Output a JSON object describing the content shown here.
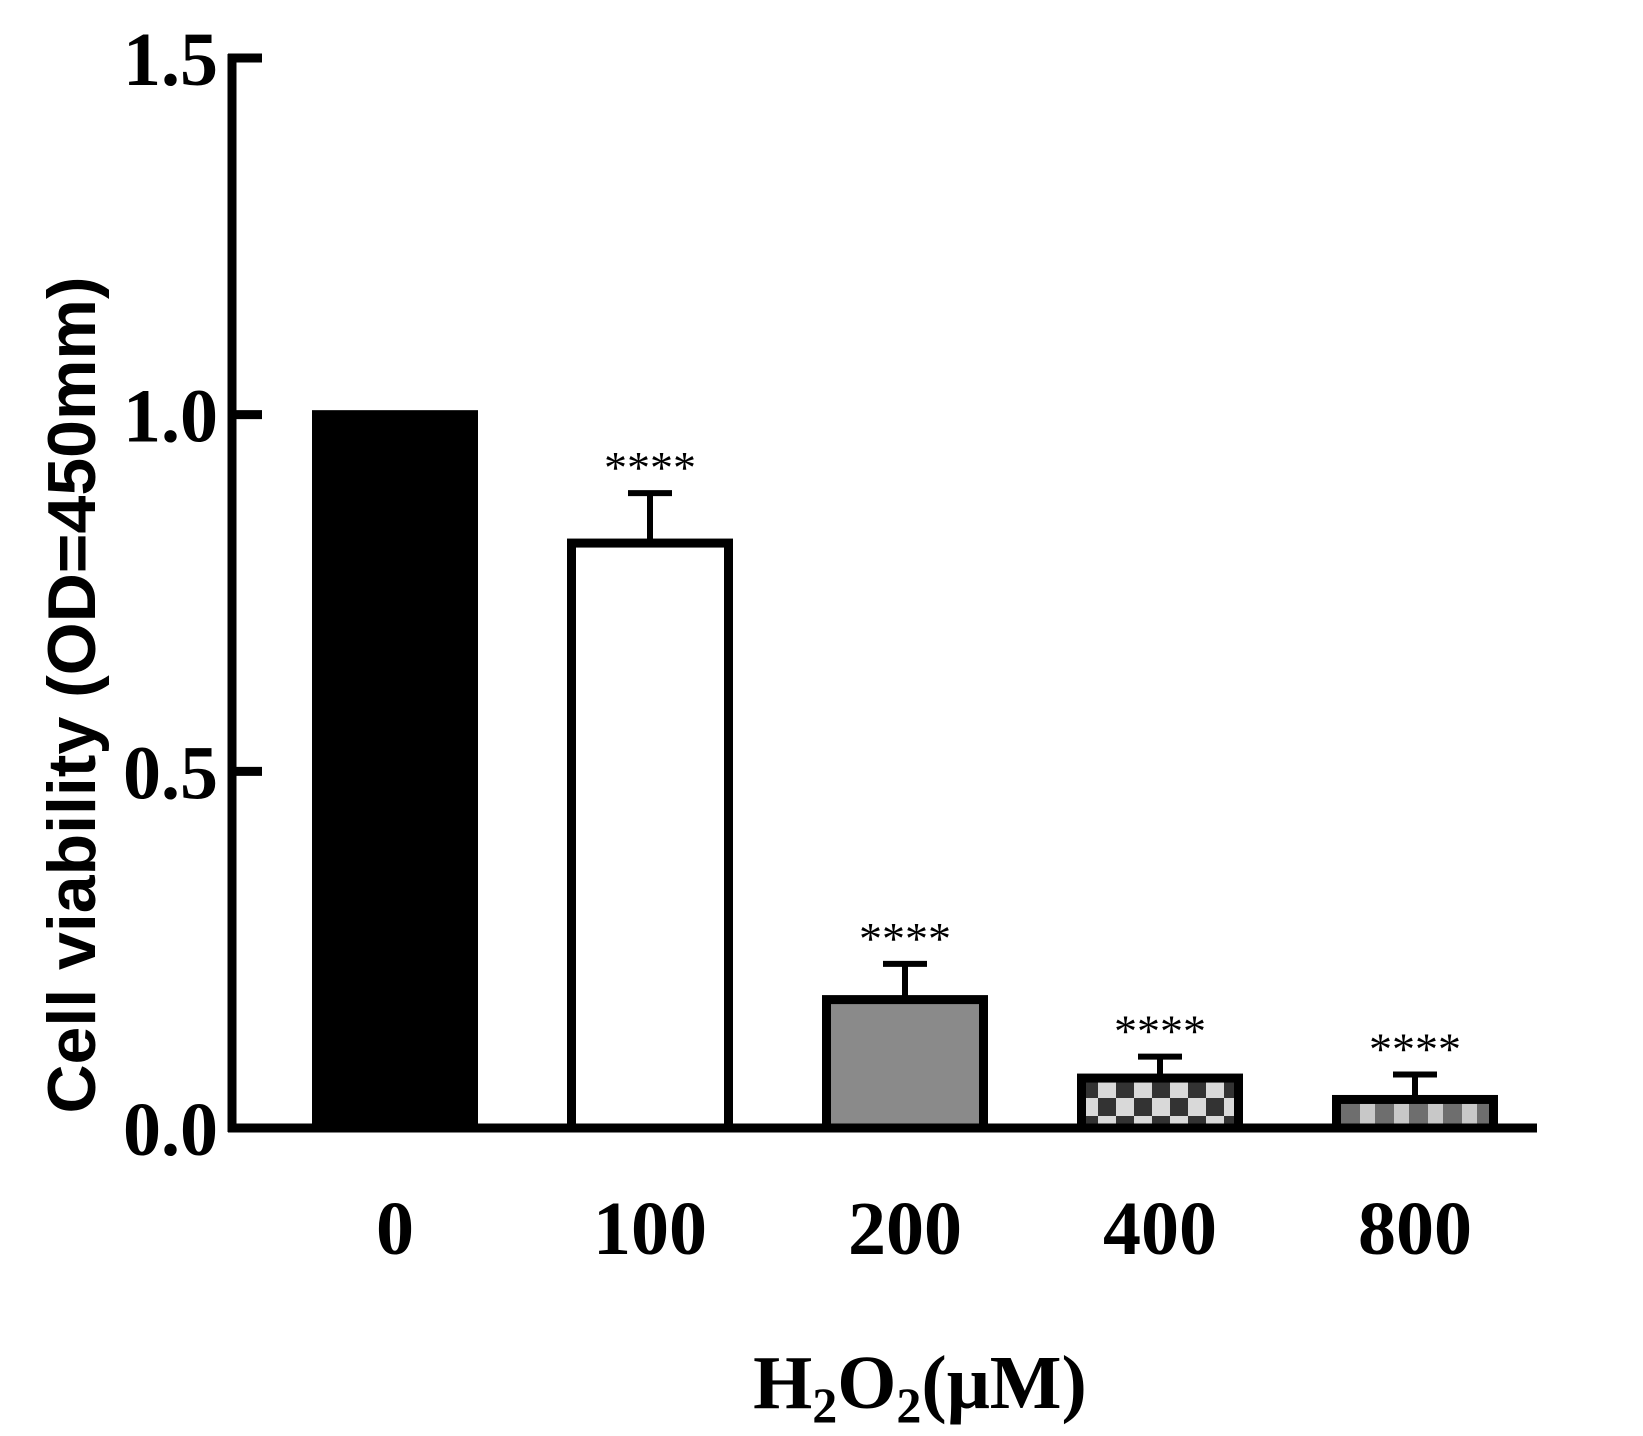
{
  "chart_data": {
    "type": "bar",
    "ylabel": "Cell viability (OD=450mm)",
    "xlabel": {
      "prefix": "H",
      "sub1": "2",
      "mid": "O",
      "sub2": "2",
      "suffix": "(μM)"
    },
    "ylim": [
      0,
      1.5
    ],
    "yticks": [
      {
        "value": 0.0,
        "label": "0.0"
      },
      {
        "value": 0.5,
        "label": "0.5"
      },
      {
        "value": 1.0,
        "label": "1.0"
      },
      {
        "value": 1.5,
        "label": "1.5"
      }
    ],
    "categories": [
      "0",
      "100",
      "200",
      "400",
      "800"
    ],
    "values": [
      1.0,
      0.82,
      0.18,
      0.07,
      0.04
    ],
    "errors": [
      0,
      0.07,
      0.05,
      0.03,
      0.035
    ],
    "significance": [
      "",
      "****",
      "****",
      "****",
      "****"
    ],
    "fills": [
      "solid-black",
      "white",
      "solid-gray",
      "checker",
      "stripe"
    ],
    "colors": {
      "axis": "#000000",
      "black": "#000000",
      "gray": "#8a8a8a",
      "white": "#ffffff",
      "checker_dark": "#333333",
      "checker_light": "#d9d9d9"
    },
    "grid": false,
    "legend": "none"
  }
}
